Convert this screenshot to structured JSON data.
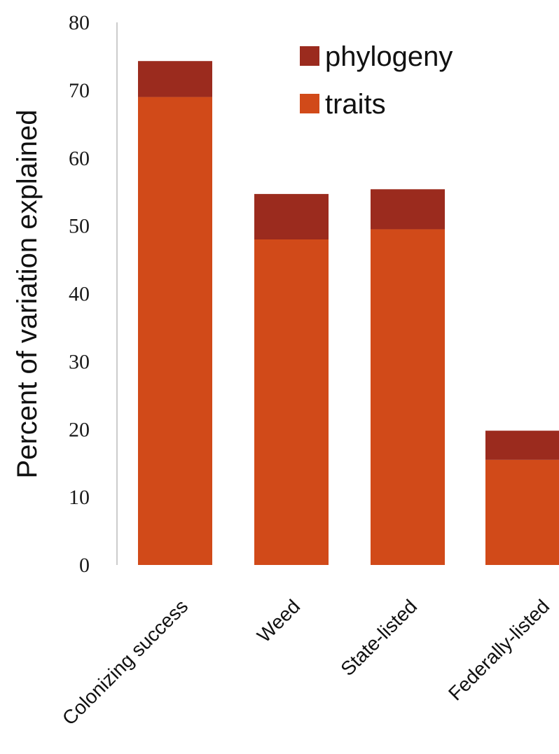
{
  "chart_data": {
    "type": "bar",
    "stacked": true,
    "title": "",
    "xlabel": "",
    "ylabel": "Percent of variation explained",
    "ylim": [
      0,
      80
    ],
    "yticks": [
      0,
      10,
      20,
      30,
      40,
      50,
      60,
      70,
      80
    ],
    "grid": false,
    "legend_position": "top-right",
    "categories": [
      "Colonizing success",
      "Weed",
      "State-listed",
      "Federally-listed"
    ],
    "series": [
      {
        "name": "traits",
        "color": "#d14a19",
        "values": [
          69,
          48,
          49.5,
          15.5
        ]
      },
      {
        "name": "phylogeny",
        "color": "#9b2b1e",
        "values": [
          5.3,
          6.7,
          5.9,
          4.3
        ]
      }
    ]
  }
}
